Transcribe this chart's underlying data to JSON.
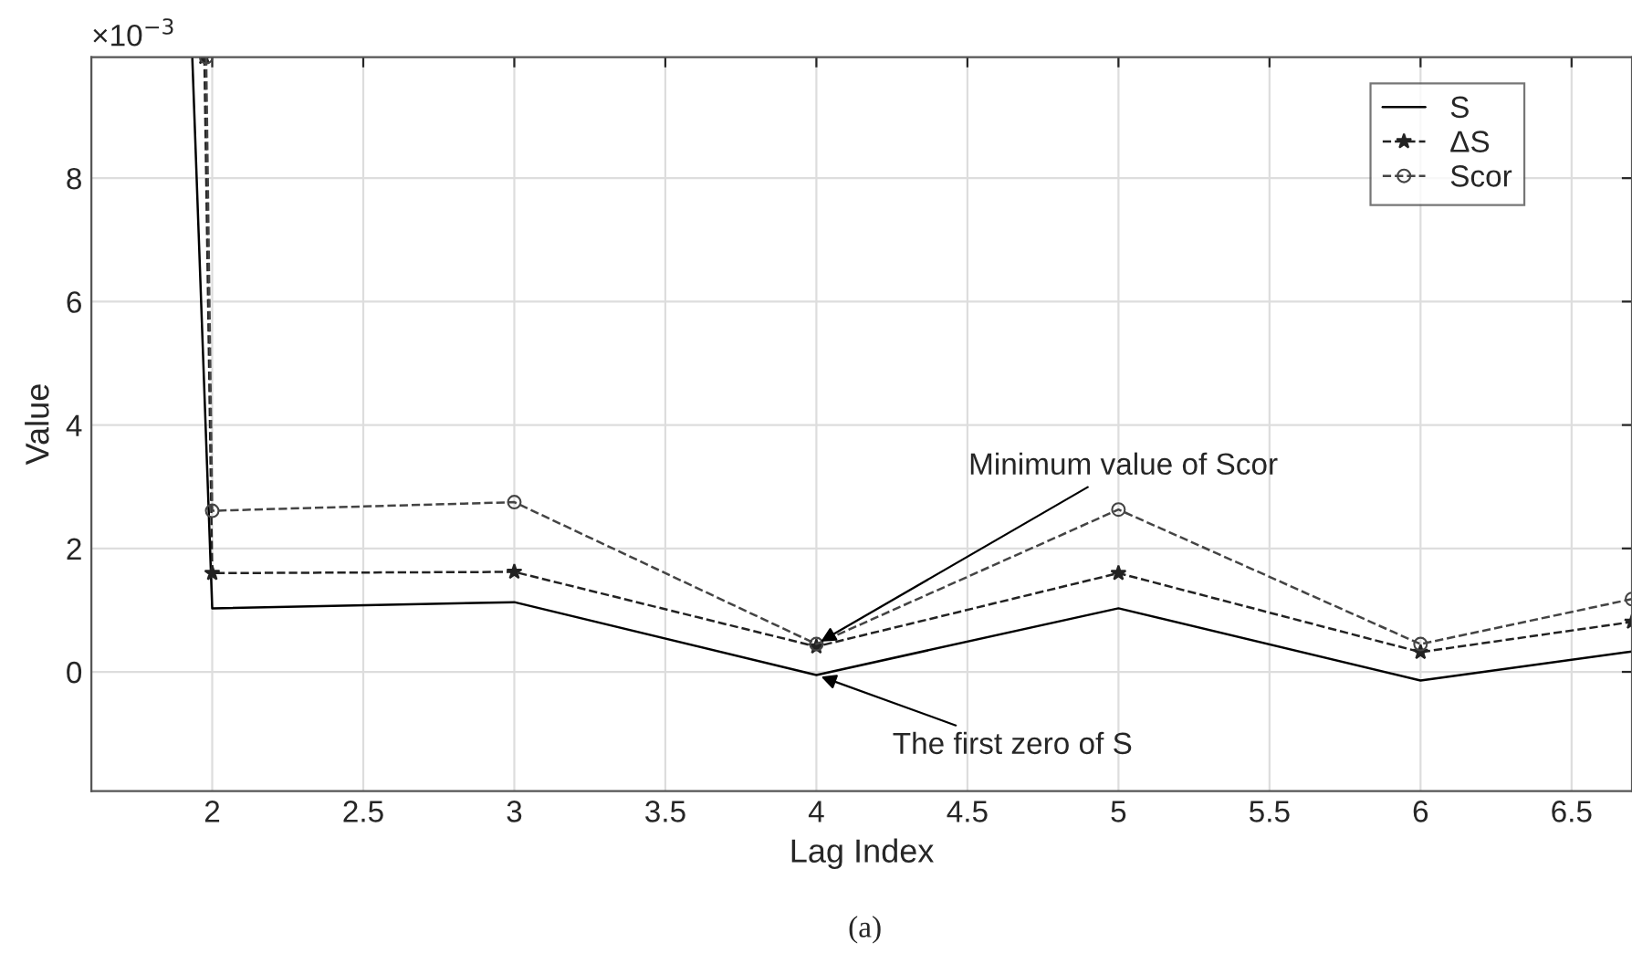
{
  "chart_data": {
    "type": "line",
    "xlabel": "Lag Index",
    "ylabel": "Value",
    "xlim": [
      1.6,
      6.7
    ],
    "ylim": [
      -1.93,
      9.96
    ],
    "xticks": [
      2,
      2.5,
      3,
      3.5,
      4,
      4.5,
      5,
      5.5,
      6,
      6.5
    ],
    "yticks": [
      0,
      2,
      4,
      6,
      8
    ],
    "grid": true,
    "legend": "top right",
    "series": [
      {
        "name": "S",
        "color": "#000000",
        "marker": "none",
        "line_style": "solid",
        "x": [
          1.934,
          2,
          3,
          4,
          5,
          6,
          6.7
        ],
        "values": [
          9.96,
          1.03,
          1.13,
          -0.05,
          1.03,
          -0.14,
          0.33
        ]
      },
      {
        "name": "ΔS",
        "color": "#222222",
        "marker": "star",
        "line_style": "dashed",
        "x": [
          1.974,
          2,
          3,
          4,
          5,
          6,
          6.7
        ],
        "values": [
          9.96,
          1.6,
          1.62,
          0.41,
          1.6,
          0.32,
          0.81
        ]
      },
      {
        "name": "Scor",
        "color": "#444444",
        "marker": "circle",
        "line_style": "dashed",
        "x": [
          1.98,
          2,
          3,
          4,
          5,
          6,
          6.7
        ],
        "values": [
          9.96,
          2.61,
          2.75,
          0.45,
          2.63,
          0.45,
          1.18
        ]
      }
    ],
    "annotations": [
      "×10$^{−3}$",
      {
        "text": "Minimum value of Scor",
        "x": 4,
        "y": 0.45
      },
      {
        "text": "The first zero of S",
        "x": 4,
        "y": -0.05
      },
      "(a)"
    ]
  }
}
